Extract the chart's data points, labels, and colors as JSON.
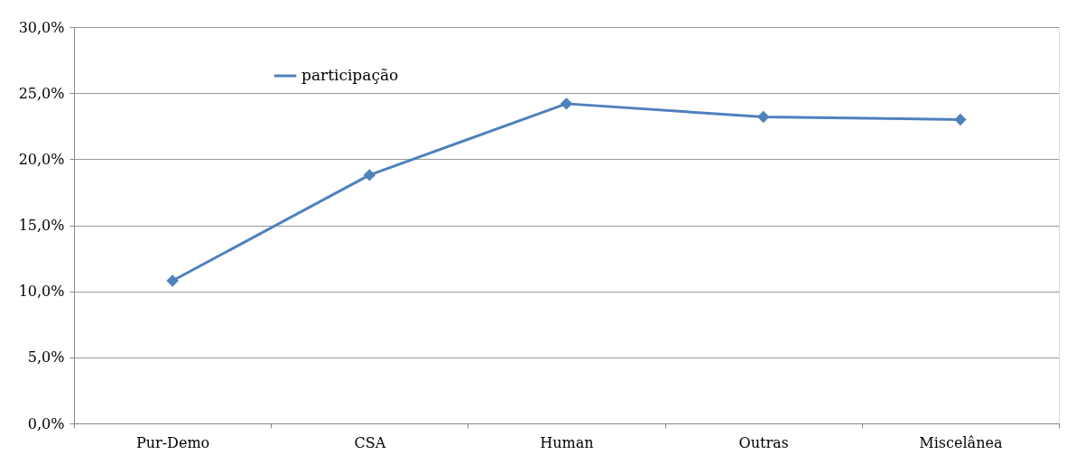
{
  "chart_data": {
    "type": "line",
    "categories": [
      "Pur-Demo",
      "CSA",
      "Human",
      "Outras",
      "Miscelânea"
    ],
    "series": [
      {
        "name": "participação",
        "color": "#4f81bd",
        "values": [
          10.8,
          18.8,
          24.2,
          23.2,
          23.0
        ]
      }
    ],
    "ylim": [
      0,
      30
    ],
    "yticks": [
      {
        "value": 0,
        "label": "0,0%"
      },
      {
        "value": 5,
        "label": "5,0%"
      },
      {
        "value": 10,
        "label": "10,0%"
      },
      {
        "value": 15,
        "label": "15,0%"
      },
      {
        "value": 20,
        "label": "20,0%"
      },
      {
        "value": 25,
        "label": "25,0%"
      },
      {
        "value": 30,
        "label": "30,0%"
      }
    ],
    "grid": "y",
    "legend": "top left",
    "marker": "diamond",
    "line_style": "solid"
  }
}
